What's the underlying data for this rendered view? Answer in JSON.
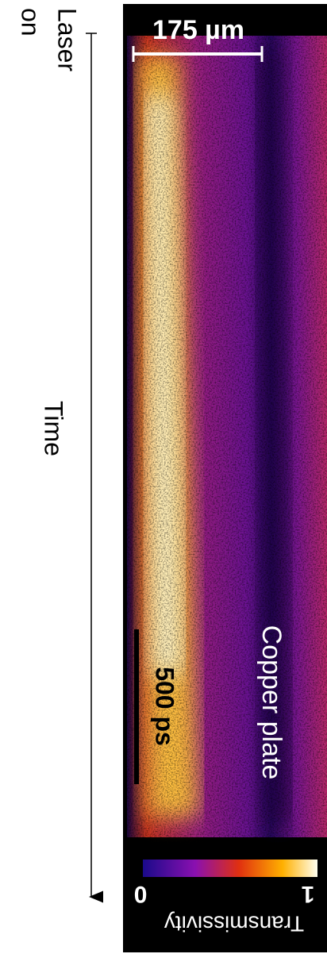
{
  "labels": {
    "laser_on": [
      "Laser",
      "on"
    ],
    "time": "Time",
    "scale_x": "175 µm",
    "scale_t": "500 ps",
    "sample": "Copper plate"
  },
  "colorbar": {
    "min": "0",
    "max": "1",
    "title": "Transmissivity"
  }
}
